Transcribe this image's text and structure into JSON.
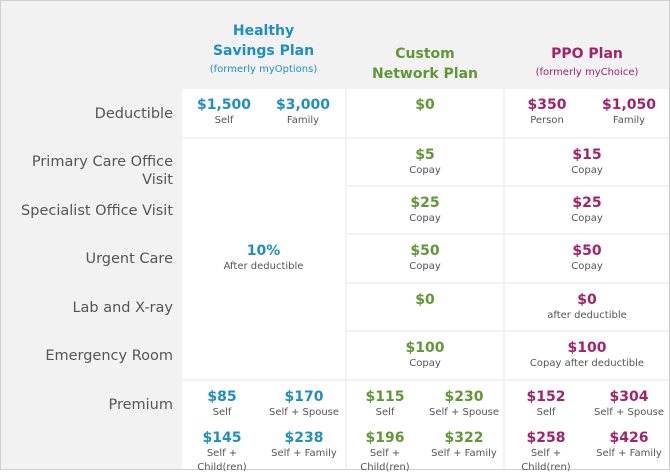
{
  "plans": [
    {
      "title_line1": "Healthy",
      "title_line2": "Savings Plan",
      "subtitle": "(formerly myOptions)",
      "color": "#1f8fc3"
    },
    {
      "title_line1": "Custom",
      "title_line2": "Network Plan",
      "subtitle": "",
      "color": "#5f9834"
    },
    {
      "title_line1": "PPO Plan",
      "title_line2": "",
      "subtitle": "(formerly myChoice)",
      "color": "#a3226e"
    }
  ],
  "rows": [
    "Deductible",
    "Primary Care Office Visit",
    "Specialist Office Visit",
    "Urgent Care",
    "Lab and X-ray",
    "Emergency Room",
    "Premium"
  ],
  "deductible": {
    "hsp": [
      {
        "amount": "$1,500",
        "label": "Self"
      },
      {
        "amount": "$3,000",
        "label": "Family"
      }
    ],
    "custom": {
      "amount": "$0"
    },
    "ppo": [
      {
        "amount": "$350",
        "label": "Person"
      },
      {
        "amount": "$1,050",
        "label": "Family"
      }
    ]
  },
  "hsp_services": {
    "amount": "10%",
    "note": "After deductible"
  },
  "custom_services": [
    {
      "amount": "$5",
      "note": "Copay"
    },
    {
      "amount": "$25",
      "note": "Copay"
    },
    {
      "amount": "$50",
      "note": "Copay"
    },
    {
      "amount": "$0",
      "note": ""
    },
    {
      "amount": "$100",
      "note": "Copay"
    }
  ],
  "ppo_services": [
    {
      "amount": "$15",
      "note": "Copay"
    },
    {
      "amount": "$25",
      "note": "Copay"
    },
    {
      "amount": "$50",
      "note": "Copay"
    },
    {
      "amount": "$0",
      "note": "after deductible"
    },
    {
      "amount": "$100",
      "note": "Copay after deductible"
    }
  ],
  "premium": {
    "hsp": [
      {
        "amount": "$85",
        "label": "Self"
      },
      {
        "amount": "$170",
        "label": "Self + Spouse"
      },
      {
        "amount": "$145",
        "label": "Self + Child(ren)"
      },
      {
        "amount": "$238",
        "label": "Self + Family"
      }
    ],
    "custom": [
      {
        "amount": "$115",
        "label": "Self"
      },
      {
        "amount": "$230",
        "label": "Self + Spouse"
      },
      {
        "amount": "$196",
        "label": "Self + Child(ren)"
      },
      {
        "amount": "$322",
        "label": "Self + Family"
      }
    ],
    "ppo": [
      {
        "amount": "$152",
        "label": "Self"
      },
      {
        "amount": "$304",
        "label": "Self + Spouse"
      },
      {
        "amount": "$258",
        "label": "Self + Child(ren)"
      },
      {
        "amount": "$426",
        "label": "Self + Family"
      }
    ]
  }
}
